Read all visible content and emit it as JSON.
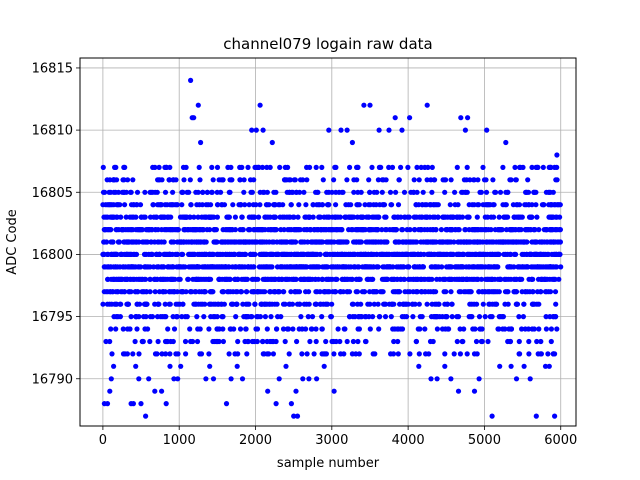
{
  "chart_data": {
    "type": "scatter",
    "title": "channel079 logain raw data",
    "xlabel": "sample number",
    "ylabel": "ADC Code",
    "xlim": [
      -300,
      6200
    ],
    "ylim": [
      16786.2,
      16815.8
    ],
    "grid": true,
    "x_ticks": [
      0,
      1000,
      2000,
      3000,
      4000,
      5000,
      6000
    ],
    "y_ticks": [
      16790,
      16795,
      16800,
      16805,
      16810,
      16815
    ],
    "series": [
      {
        "color": "#0000ff",
        "marker": "circle",
        "n_samples": 6000,
        "dense_band": [
          16792,
          16807
        ],
        "outliers": [
          [
            20,
            16788
          ],
          [
            60,
            16788
          ],
          [
            90,
            16789
          ],
          [
            110,
            16790
          ],
          [
            140,
            16791
          ],
          [
            370,
            16788
          ],
          [
            400,
            16788
          ],
          [
            430,
            16791
          ],
          [
            470,
            16790
          ],
          [
            500,
            16788
          ],
          [
            560,
            16787
          ],
          [
            600,
            16790
          ],
          [
            680,
            16789
          ],
          [
            770,
            16789
          ],
          [
            830,
            16788
          ],
          [
            880,
            16791
          ],
          [
            930,
            16790
          ],
          [
            980,
            16790
          ],
          [
            1020,
            16791
          ],
          [
            1150,
            16814
          ],
          [
            1170,
            16811
          ],
          [
            1190,
            16811
          ],
          [
            1250,
            16812
          ],
          [
            1280,
            16809
          ],
          [
            1350,
            16790
          ],
          [
            1400,
            16791
          ],
          [
            1450,
            16790
          ],
          [
            1620,
            16788
          ],
          [
            1680,
            16790
          ],
          [
            1760,
            16791
          ],
          [
            1830,
            16790
          ],
          [
            1950,
            16810
          ],
          [
            2010,
            16810
          ],
          [
            2060,
            16812
          ],
          [
            2100,
            16810
          ],
          [
            2160,
            16789
          ],
          [
            2220,
            16809
          ],
          [
            2270,
            16788
          ],
          [
            2310,
            16790
          ],
          [
            2400,
            16791
          ],
          [
            2470,
            16788
          ],
          [
            2500,
            16787
          ],
          [
            2530,
            16789
          ],
          [
            2550,
            16787
          ],
          [
            2620,
            16790
          ],
          [
            2700,
            16790
          ],
          [
            2800,
            16790
          ],
          [
            2900,
            16791
          ],
          [
            2960,
            16810
          ],
          [
            3030,
            16789
          ],
          [
            3120,
            16810
          ],
          [
            3200,
            16810
          ],
          [
            3270,
            16809
          ],
          [
            3420,
            16812
          ],
          [
            3500,
            16812
          ],
          [
            3620,
            16810
          ],
          [
            3750,
            16810
          ],
          [
            3830,
            16811
          ],
          [
            3920,
            16810
          ],
          [
            4020,
            16811
          ],
          [
            4140,
            16791
          ],
          [
            4250,
            16812
          ],
          [
            4300,
            16790
          ],
          [
            4380,
            16790
          ],
          [
            4480,
            16791
          ],
          [
            4560,
            16790
          ],
          [
            4660,
            16789
          ],
          [
            4690,
            16811
          ],
          [
            4750,
            16810
          ],
          [
            4780,
            16811
          ],
          [
            4870,
            16789
          ],
          [
            4930,
            16790
          ],
          [
            5030,
            16810
          ],
          [
            5100,
            16787
          ],
          [
            5200,
            16791
          ],
          [
            5280,
            16809
          ],
          [
            5350,
            16791
          ],
          [
            5420,
            16790
          ],
          [
            5520,
            16791
          ],
          [
            5600,
            16790
          ],
          [
            5680,
            16787
          ],
          [
            5800,
            16791
          ],
          [
            5850,
            16791
          ],
          [
            5920,
            16787
          ],
          [
            5950,
            16808
          ]
        ]
      }
    ]
  }
}
